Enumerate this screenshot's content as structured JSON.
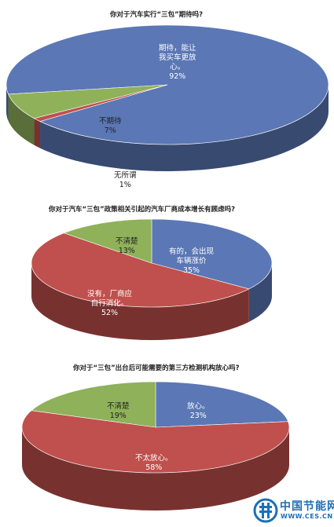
{
  "chart_data": [
    {
      "type": "pie",
      "title": "你对于汽车实行“三包”期待吗?",
      "slices": [
        {
          "label": "期待，能让\n我买车更放\n心。",
          "pct": "92%",
          "value": 92,
          "color": "#5b77b5"
        },
        {
          "label": "无所谓",
          "pct": "1%",
          "value": 1,
          "color": "#c0504d"
        },
        {
          "label": "不期待",
          "pct": "7%",
          "value": 7,
          "color": "#8fb15a"
        }
      ]
    },
    {
      "type": "pie",
      "title": "你对于汽车“三包”政策相关引起的汽车厂商成本增长有顾虑吗?",
      "slices": [
        {
          "label": "有的，会出现\n车辆涨价",
          "pct": "35%",
          "value": 35,
          "color": "#5b77b5"
        },
        {
          "label": "没有，厂商应\n自行消化。",
          "pct": "52%",
          "value": 52,
          "color": "#c0504d"
        },
        {
          "label": "不清楚",
          "pct": "13%",
          "value": 13,
          "color": "#8fb15a"
        }
      ]
    },
    {
      "type": "pie",
      "title": "你对于“三包”出台后可能需要的第三方检测机构放心吗?",
      "slices": [
        {
          "label": "放心。",
          "pct": "23%",
          "value": 23,
          "color": "#5b77b5"
        },
        {
          "label": "不太放心。",
          "pct": "58%",
          "value": 58,
          "color": "#c0504d"
        },
        {
          "label": "不清楚",
          "pct": "19%",
          "value": 19,
          "color": "#8fb15a"
        }
      ]
    }
  ],
  "watermark": {
    "name": "中国节能网",
    "url": "WWW.CES.CN",
    "icon": "ces-logo-icon"
  }
}
